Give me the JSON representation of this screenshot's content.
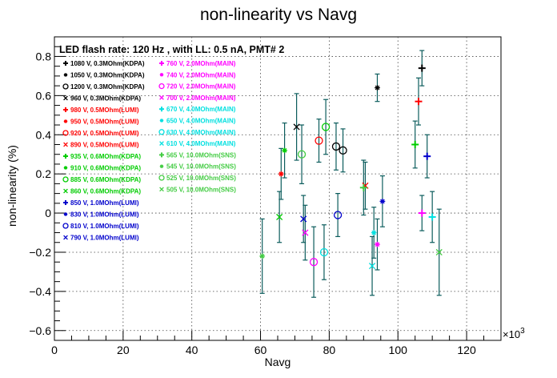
{
  "chart_data": {
    "type": "scatter",
    "title": "non-linearity vs Navg",
    "subtitle": "LED flash rate: 120 Hz , with LL: 0.5 nA, PMT# 2",
    "xlabel": "Navg",
    "ylabel": "non-linearity (%)",
    "x_exponent": "×10",
    "x_exponent_power": "3",
    "xlim": [
      0,
      130000
    ],
    "ylim": [
      -0.65,
      0.9
    ],
    "x_ticks": [
      0,
      20000,
      40000,
      60000,
      80000,
      100000,
      120000
    ],
    "x_tick_labels": [
      "0",
      "20",
      "40",
      "60",
      "80",
      "100",
      "120"
    ],
    "y_ticks": [
      -0.6,
      -0.4,
      -0.2,
      0,
      0.2,
      0.4,
      0.6,
      0.8
    ],
    "y_tick_labels": [
      "−0.6",
      "−0.4",
      "−0.2",
      "0",
      "0.2",
      "0.4",
      "0.6",
      "0.8"
    ],
    "grid": true,
    "legend_placement": "top-left",
    "error_bar_color": "#0b5c5c",
    "series": [
      {
        "name": "1080 V, 0.3MOhm(KDPA)",
        "color": "#000000",
        "marker": "plus",
        "points": [
          {
            "x": 107000,
            "y": 0.74,
            "err": 0.09
          }
        ]
      },
      {
        "name": "1050 V, 0.3MOhm(KDPA)",
        "color": "#000000",
        "marker": "star",
        "points": [
          {
            "x": 94000,
            "y": 0.64,
            "err": 0.07
          }
        ]
      },
      {
        "name": "1200 V, 0.3MOhm(KDPA)",
        "color": "#000000",
        "marker": "circle",
        "points": [
          {
            "x": 82000,
            "y": 0.34,
            "err": 0.12
          },
          {
            "x": 84000,
            "y": 0.32,
            "err": 0.11
          }
        ]
      },
      {
        "name": "960 V, 0.3MOhm(KDPA)",
        "color": "#000000",
        "marker": "x",
        "points": [
          {
            "x": 70500,
            "y": 0.44,
            "err": 0.17
          }
        ]
      },
      {
        "name": "980 V, 0.5MOhm(LUMI)",
        "color": "#ff0000",
        "marker": "plus",
        "points": [
          {
            "x": 106000,
            "y": 0.57,
            "err": 0.12
          }
        ]
      },
      {
        "name": "950 V, 0.5MOhm(LUMI)",
        "color": "#ff0000",
        "marker": "star",
        "points": [
          {
            "x": 66000,
            "y": 0.2,
            "err": 0.13
          }
        ]
      },
      {
        "name": "920 V, 0.5MOhm(LUMI)",
        "color": "#ff0000",
        "marker": "circle",
        "points": [
          {
            "x": 77000,
            "y": 0.37,
            "err": 0.11
          }
        ]
      },
      {
        "name": "890 V, 0.5MOhm(LUMI)",
        "color": "#ff0000",
        "marker": "x",
        "points": [
          {
            "x": 90500,
            "y": 0.14,
            "err": 0.12
          }
        ]
      },
      {
        "name": "935 V, 0.6MOhm(KDPA)",
        "color": "#00cc00",
        "marker": "plus",
        "points": [
          {
            "x": 105000,
            "y": 0.35,
            "err": 0.12
          }
        ]
      },
      {
        "name": "910 V, 0.6MOhm(KDPA)",
        "color": "#00cc00",
        "marker": "star",
        "points": [
          {
            "x": 67000,
            "y": 0.32,
            "err": 0.14
          }
        ]
      },
      {
        "name": "885 V, 0.6MOhm(KDPA)",
        "color": "#00cc00",
        "marker": "circle",
        "points": [
          {
            "x": 79000,
            "y": 0.44,
            "err": 0.14
          }
        ]
      },
      {
        "name": "860 V, 0.6MOhm(KDPA)",
        "color": "#00cc00",
        "marker": "x",
        "points": [
          {
            "x": 65500,
            "y": -0.02,
            "err": 0.13
          }
        ]
      },
      {
        "name": "850 V, 1.0MOhm(LUMI)",
        "color": "#0000cc",
        "marker": "plus",
        "points": [
          {
            "x": 108500,
            "y": 0.29,
            "err": 0.11
          }
        ]
      },
      {
        "name": "830 V, 1.0MOhm(LUMI)",
        "color": "#0000cc",
        "marker": "star",
        "points": [
          {
            "x": 95500,
            "y": 0.06,
            "err": 0.13
          }
        ]
      },
      {
        "name": "810 V, 1.0MOhm(LUMI)",
        "color": "#0000cc",
        "marker": "circle",
        "points": [
          {
            "x": 82500,
            "y": -0.01,
            "err": 0.11
          }
        ]
      },
      {
        "name": "790 V, 1.0MOhm(LUMI)",
        "color": "#0000cc",
        "marker": "x",
        "points": [
          {
            "x": 72500,
            "y": -0.03,
            "err": 0.12
          }
        ]
      },
      {
        "name": "760 V, 2.0MOhm(MAIN)",
        "color": "#ff00ff",
        "marker": "plus",
        "points": [
          {
            "x": 107000,
            "y": 0.0,
            "err": 0.09
          }
        ]
      },
      {
        "name": "740 V, 2.0MOhm(MAIN)",
        "color": "#ff00ff",
        "marker": "star",
        "points": [
          {
            "x": 94000,
            "y": -0.16,
            "err": 0.13
          }
        ]
      },
      {
        "name": "720 V, 2.0MOhm(MAIN)",
        "color": "#ff00ff",
        "marker": "circle",
        "points": [
          {
            "x": 75500,
            "y": -0.25,
            "err": 0.18
          }
        ]
      },
      {
        "name": "700 V, 2.0MOhm(MAIN)",
        "color": "#ff00ff",
        "marker": "x",
        "points": [
          {
            "x": 73000,
            "y": -0.1,
            "err": 0.14
          }
        ]
      },
      {
        "name": "670 V, 4.0MOhm(MAIN)",
        "color": "#00e0e0",
        "marker": "plus",
        "points": [
          {
            "x": 110000,
            "y": -0.02,
            "err": 0.13
          }
        ]
      },
      {
        "name": "650 V, 4.0MOhm(MAIN)",
        "color": "#00e0e0",
        "marker": "star",
        "points": [
          {
            "x": 93000,
            "y": -0.1,
            "err": 0.13
          }
        ]
      },
      {
        "name": "630 V, 4.0MOhm(MAIN)",
        "color": "#00e0e0",
        "marker": "circle",
        "points": [
          {
            "x": 78500,
            "y": -0.2,
            "err": 0.14
          }
        ]
      },
      {
        "name": "610 V, 4.0MOhm(MAIN)",
        "color": "#00e0e0",
        "marker": "x",
        "points": [
          {
            "x": 92500,
            "y": -0.27,
            "err": 0.15
          }
        ]
      },
      {
        "name": "565 V, 10.0MOhm(SNS)",
        "color": "#44cc44",
        "marker": "plus",
        "points": [
          {
            "x": 90000,
            "y": 0.13,
            "err": 0.14
          }
        ]
      },
      {
        "name": "545 V, 10.0MOhm(SNS)",
        "color": "#44cc44",
        "marker": "star",
        "points": [
          {
            "x": 60500,
            "y": -0.22,
            "err": 0.19
          }
        ]
      },
      {
        "name": "525 V, 10.0MOhm(SNS)",
        "color": "#44cc44",
        "marker": "circle",
        "points": [
          {
            "x": 72000,
            "y": 0.3,
            "err": 0.15
          }
        ]
      },
      {
        "name": "505 V, 10.0MOhm(SNS)",
        "color": "#44cc44",
        "marker": "x",
        "points": [
          {
            "x": 112000,
            "y": -0.2,
            "err": 0.22
          }
        ]
      }
    ]
  }
}
